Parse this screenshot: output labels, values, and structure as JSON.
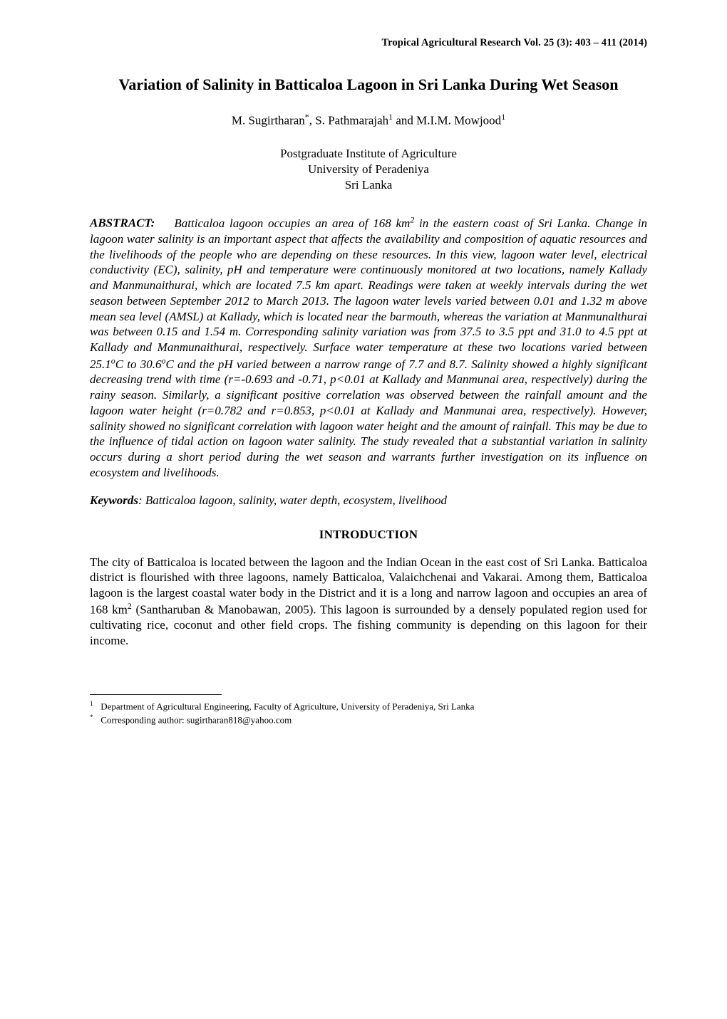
{
  "runningHeader": "Tropical Agricultural Research Vol. 25 (3): 403 – 411 (2014)",
  "title": "Variation of Salinity in Batticaloa Lagoon in Sri Lanka During Wet Season",
  "authors_html": "M. Sugirtharan<sup>*</sup>, S. Pathmarajah<sup>1</sup> and M.I.M. Mowjood<sup>1</sup>",
  "affiliation": {
    "line1": "Postgraduate Institute of Agriculture",
    "line2": "University of Peradeniya",
    "line3": "Sri Lanka"
  },
  "abstract": {
    "label": "ABSTRACT:",
    "body_html": "Batticaloa lagoon occupies an area of 168 km<sup>2</sup> in the eastern coast of Sri Lanka. Change in lagoon water salinity is an important aspect that affects the availability and composition of aquatic resources and the livelihoods of the people who are depending on these resources. In this view, lagoon water level, electrical conductivity (EC), salinity, pH and temperature were continuously monitored at two locations, namely Kallady and Manmunaithurai, which are located 7.5 km apart. Readings were taken at weekly intervals during the wet season between September 2012 to March 2013. The lagoon water levels varied between 0.01 and 1.32 m above mean sea level (AMSL) at Kallady, which is located near the barmouth, whereas the variation at Manmunalthurai was between 0.15 and 1.54 m. Corresponding salinity variation was from 37.5 to 3.5 ppt and 31.0 to 4.5 ppt at Kallady and Manmunaithurai, respectively. Surface water temperature at these two locations varied between 25.1<sup>o</sup>C to 30.6<sup>o</sup>C and the pH varied between a narrow range of 7.7 and 8.7. Salinity showed a highly significant decreasing trend with time (r=-0.693 and -0.71, p<0.01 at Kallady and Manmunai area, respectively) during the rainy season. Similarly, a significant positive correlation was observed between the rainfall amount and the lagoon water height (r=0.782 and r=0.853, p<0.01 at Kallady and Manmunai area, respectively). However, salinity showed no significant correlation with lagoon water height and the amount of rainfall. This may be due to the influence of tidal action on lagoon water salinity. The study revealed that a substantial variation in salinity occurs during a short period during the wet season and warrants further investigation on its influence on ecosystem and livelihoods."
  },
  "keywords": {
    "label": "Keywords",
    "body": ": Batticaloa lagoon, salinity, water depth, ecosystem, livelihood"
  },
  "section_heading": "INTRODUCTION",
  "intro_html": "The city of Batticaloa is located between the lagoon and the Indian Ocean in the east cost of Sri Lanka.  Batticaloa district is flourished with three lagoons, namely Batticaloa, Valaichchenai and Vakarai. Among them, Batticaloa lagoon is the largest coastal water body in the District and it is a long and narrow lagoon and occupies an area of 168 km<sup>2</sup> (Santharuban & Manobawan, 2005).  This lagoon is surrounded by a densely populated region used for cultivating rice, coconut and other field crops. The fishing community is depending on this lagoon for their income.",
  "footnotes": {
    "fn1_marker": "1",
    "fn1_text": "Department of Agricultural Engineering, Faculty of Agriculture, University of Peradeniya, Sri Lanka",
    "fn2_marker": "*",
    "fn2_text": "Corresponding author: sugirtharan818@yahoo.com"
  }
}
